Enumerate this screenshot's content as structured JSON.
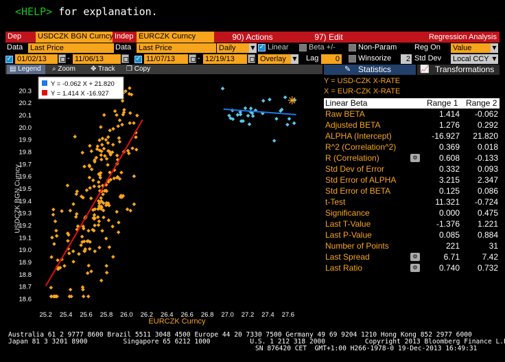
{
  "help_hint": {
    "key": "<HELP>",
    "text": " for explanation."
  },
  "toolbar1": {
    "dep_label": "Dep",
    "dep_value": "USDCZK BGN Curncy",
    "indep_label": "Indep",
    "indep_value": "EURCZK Curncy",
    "actions": "90) Actions",
    "edit": "97) Edit",
    "title": "Regression Analysis"
  },
  "toolbar2": {
    "data_label1": "Data",
    "data_value1": "Last Price",
    "data_label2": "Data",
    "data_value2": "Last Price",
    "period": "Daily",
    "linear": "Linear",
    "beta": "Beta +/-",
    "nonparam": "Non-Param",
    "reg_on_label": "Reg On",
    "reg_on_value": "Value"
  },
  "toolbar3": {
    "date1_start": "01/02/13",
    "date1_end": "11/06/13",
    "date2_start": "11/07/13",
    "date2_end": "12/19/13",
    "overlay": "Overlay",
    "lag_label": "Lag",
    "lag_value": "0",
    "winsorize": "Winsorize",
    "std_dev_value": "2",
    "std_dev_label": "Std Dev",
    "ccy": "Local CCY"
  },
  "chart_tabs": {
    "legend": "Legend",
    "zoom": "Zoom",
    "track": "Track",
    "copy": "Copy"
  },
  "chart_data": {
    "type": "scatter",
    "xlabel": "EURCZK Curncy",
    "ylabel": "USDCZK BGN Curncy",
    "xlim": [
      25.1,
      27.9
    ],
    "ylim": [
      18.55,
      20.4
    ],
    "x_ticks": [
      "25.2",
      "25.4",
      "25.6",
      "25.8",
      "26.0",
      "26.2",
      "26.4",
      "26.6",
      "26.8",
      "27.0",
      "27.2",
      "27.4",
      "27.6"
    ],
    "y_ticks": [
      "18.6",
      "18.7",
      "18.8",
      "18.9",
      "19.0",
      "19.1",
      "19.2",
      "19.3",
      "19.4",
      "19.5",
      "19.6",
      "19.7",
      "19.8",
      "19.9",
      "20.0",
      "20.1",
      "20.2",
      "20.3"
    ],
    "legend": [
      {
        "label": "Y = -0.062 X + 21.820",
        "color": "#1e78e6"
      },
      {
        "label": "Y = 1.414 X  -16.927",
        "color": "#e01010"
      }
    ],
    "series": [
      {
        "name": "Range 1",
        "color": "#f7a51c",
        "marker": "diamond",
        "fit": {
          "slope": 1.414,
          "intercept": -16.927,
          "x_range": [
            25.2,
            26.16
          ]
        }
      },
      {
        "name": "Range 2",
        "color": "#5bc8e8",
        "marker": "diamond",
        "fit": {
          "slope": -0.062,
          "intercept": 21.82,
          "x_range": [
            26.96,
            27.68
          ]
        },
        "last_point": [
          27.64,
          20.22
        ]
      }
    ]
  },
  "panel": {
    "tab_statistics": "Statistics",
    "tab_transformations": "Transformations",
    "legend_y": "Y = USD-CZK X-RATE",
    "legend_x": "X = EUR-CZK X-RATE",
    "head_label": "Linear Beta",
    "head_r1": "Range 1",
    "head_r2": "Range 2",
    "rows": [
      {
        "label": "Raw BETA",
        "r1": "1.414",
        "r2": "-0.062"
      },
      {
        "label": "Adjusted BETA",
        "r1": "1.276",
        "r2": "0.292"
      },
      {
        "label": "ALPHA (Intercept)",
        "r1": "-16.927",
        "r2": "21.820"
      },
      {
        "label": "R^2 (Correlation^2)",
        "r1": "0.369",
        "r2": "0.018"
      },
      {
        "label": "R (Correlation)",
        "r1": "0.608",
        "r2": "-0.133",
        "icon": true
      },
      {
        "label": "Std Dev of Error",
        "r1": "0.332",
        "r2": "0.093"
      },
      {
        "label": "Std Error of ALPHA",
        "r1": "3.215",
        "r2": "2.347"
      },
      {
        "label": "Std Error of BETA",
        "r1": "0.125",
        "r2": "0.086"
      },
      {
        "label": "t-Test",
        "r1": "11.321",
        "r2": "-0.724"
      },
      {
        "label": "Significance",
        "r1": "0.000",
        "r2": "0.475"
      },
      {
        "label": "Last T-Value",
        "r1": "-1.376",
        "r2": "1.221"
      },
      {
        "label": "Last P-Value",
        "r1": "0.085",
        "r2": "0.884"
      },
      {
        "label": "Number of Points",
        "r1": "221",
        "r2": "31"
      },
      {
        "label": "Last Spread",
        "r1": "6.71",
        "r2": "7.42",
        "icon": true
      },
      {
        "label": "Last Ratio",
        "r1": "0.740",
        "r2": "0.732",
        "icon": true
      }
    ]
  },
  "footer": {
    "line1": "Australia 61 2 9777 8600 Brazil 5511 3048 4500 Europe 44 20 7330 7500 Germany 49 69 9204 1210 Hong Kong 852 2977 6000",
    "line2": "Japan 81 3 3201 8900         Singapore 65 6212 1000          U.S. 1 212 318 2000          Copyright 2013 Bloomberg Finance L.P.",
    "line3": "SN 876420 CET  GMT+1:00 H266-1978-0 19-Dec-2013 16:49:31"
  }
}
